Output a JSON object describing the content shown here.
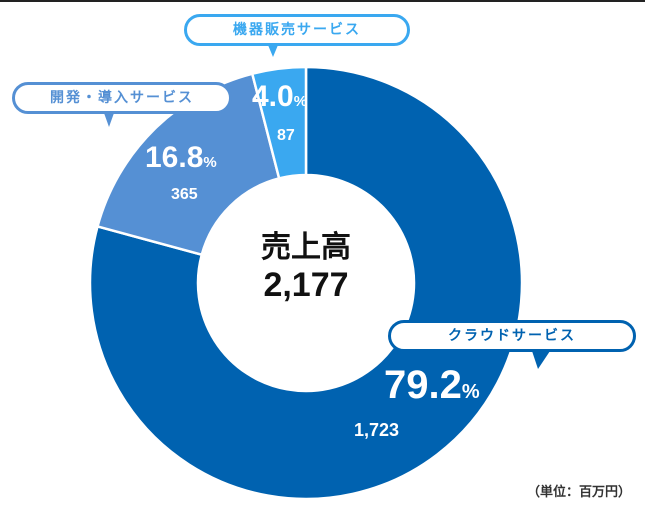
{
  "chart_data": {
    "type": "pie",
    "title": "売上高",
    "total": "2,177",
    "unit": "（単位：百万円）",
    "slices": [
      {
        "label": "クラウドサービス",
        "value": 1723,
        "value_label": "1,723",
        "percent": 79.2,
        "percent_label": "79.2",
        "color": "#0062B0"
      },
      {
        "label": "開発・導入サービス",
        "value": 365,
        "value_label": "365",
        "percent": 16.8,
        "percent_label": "16.8",
        "color": "#5590D4"
      },
      {
        "label": "機器販売サービス",
        "value": 87,
        "value_label": "87",
        "percent": 4.0,
        "percent_label": "4.0",
        "color": "#3AA8F0"
      }
    ],
    "percent_sign": "%"
  }
}
